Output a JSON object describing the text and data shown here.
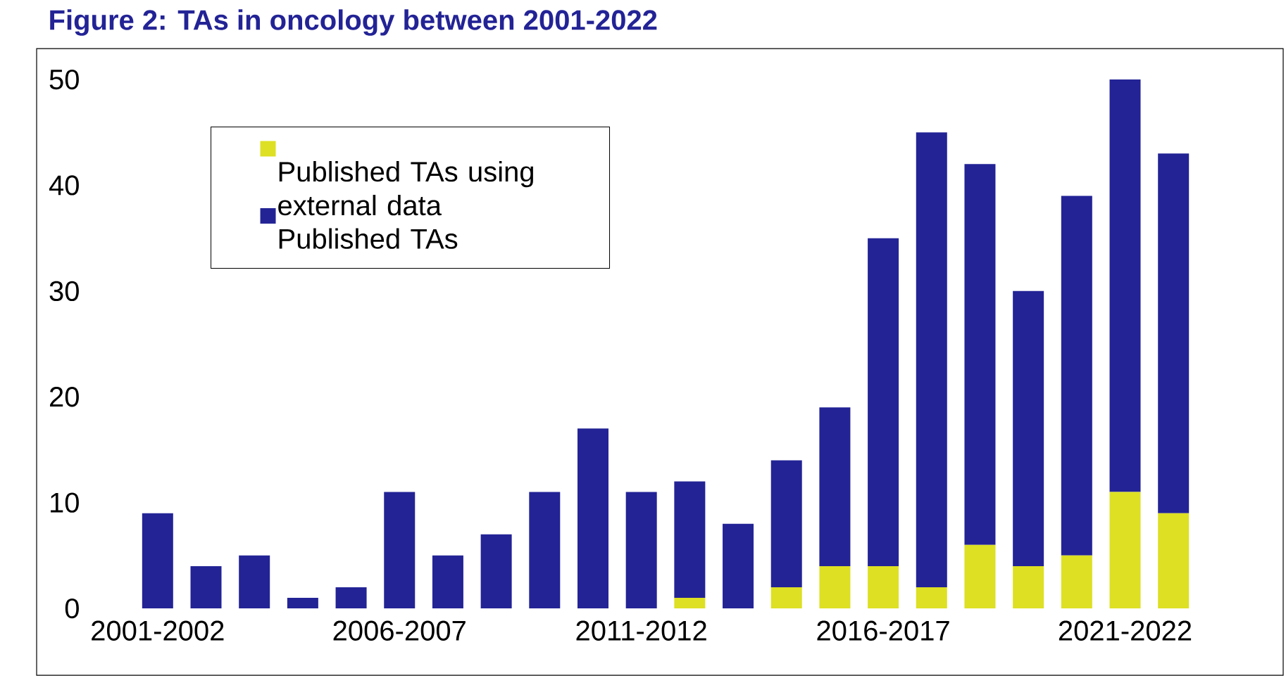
{
  "chart_data": {
    "type": "bar",
    "title": "Figure 2: TAs in oncology between 2001-2022",
    "categories": [
      "2001-2002",
      null,
      null,
      null,
      null,
      "2006-2007",
      null,
      null,
      null,
      null,
      "2011-2012",
      null,
      null,
      null,
      null,
      "2016-2017",
      null,
      null,
      null,
      null,
      "2021-2022",
      null
    ],
    "stacked": true,
    "series": [
      {
        "name": "Published TAs using external data",
        "color": "#dde023",
        "values": [
          0,
          0,
          0,
          0,
          0,
          0,
          0,
          0,
          0,
          0,
          0,
          1,
          0,
          2,
          4,
          4,
          2,
          6,
          4,
          5,
          11,
          9
        ]
      },
      {
        "name": "Published TAs",
        "color": "#232396",
        "values": [
          9,
          4,
          5,
          1,
          2,
          11,
          5,
          7,
          11,
          17,
          11,
          11,
          8,
          12,
          15,
          31,
          43,
          36,
          26,
          34,
          39,
          34
        ]
      }
    ],
    "ylim": [
      0,
      50
    ],
    "yticks": [
      0,
      10,
      20,
      30,
      40,
      50
    ],
    "grid": false,
    "legend": "top left"
  }
}
